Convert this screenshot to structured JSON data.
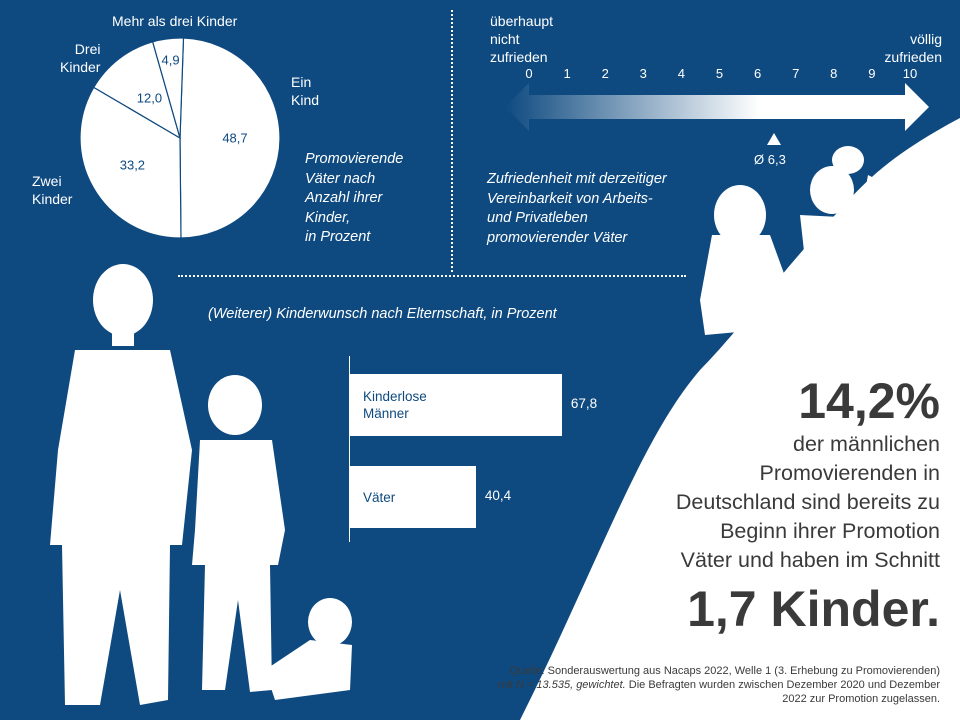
{
  "pie": {
    "title": "Mehr als drei Kinder",
    "caption": [
      "Promovierende",
      "Väter nach",
      "Anzahl ihrer",
      "Kinder,",
      "in Prozent"
    ],
    "labels": {
      "ein": [
        "Ein",
        "Kind"
      ],
      "zwei": [
        "Zwei",
        "Kinder"
      ],
      "drei": [
        "Drei",
        "Kinder"
      ]
    }
  },
  "satisfaction": {
    "left_label": [
      "überhaupt",
      "nicht",
      "zufrieden"
    ],
    "right_label": [
      "völlig",
      "zufrieden"
    ],
    "ticks": [
      "0",
      "1",
      "2",
      "3",
      "4",
      "5",
      "6",
      "7",
      "8",
      "9",
      "10"
    ],
    "average_label": "Ø 6,3",
    "average_value": 6.3,
    "caption": [
      "Zufriedenheit mit derzeitiger",
      "Vereinbarkeit von Arbeits-",
      "und Privatleben",
      "promovierender Väter"
    ]
  },
  "bars": {
    "caption": "(Weiterer) Kinderwunsch nach Elternschaft, in Prozent"
  },
  "headline": {
    "stat": "14,2%",
    "text": [
      "der männlichen",
      "Promovierenden in",
      "Deutschland sind bereits zu",
      "Beginn ihrer Promotion",
      "Väter und haben im Schnitt"
    ],
    "kids": "1,7 Kinder."
  },
  "source": {
    "line1": "Quelle: Sonderauswertung aus Nacaps 2022, Welle 1 (3. Erhebung zu Promovierenden)",
    "line2a": "mit ",
    "line2n": "N = 13.535, gewichtet.",
    "line2b": " Die Befragten wurden zwischen Dezember 2020 und Dezember",
    "line3": "2022 zur Promotion zugelassen."
  },
  "colors": {
    "background": "#0e4a80",
    "white": "#ffffff",
    "text_dark": "#3a3a3a"
  },
  "chart_data": [
    {
      "type": "pie",
      "title": "",
      "categories": [
        "Ein Kind",
        "Zwei Kinder",
        "Drei Kinder",
        "Mehr als drei Kinder"
      ],
      "values": [
        48.7,
        33.2,
        12.0,
        4.9
      ],
      "value_labels": [
        "48,7",
        "33,2",
        "12,0",
        "4,9"
      ]
    },
    {
      "type": "bar",
      "orientation": "horizontal",
      "title": "",
      "categories": [
        "Kinderlose Männer",
        "Väter"
      ],
      "category_lines": [
        [
          "Kinderlose",
          "Männer"
        ],
        [
          "Väter"
        ]
      ],
      "values": [
        67.8,
        40.4
      ],
      "value_labels": [
        "67,8",
        "40,4"
      ],
      "xlim": [
        0,
        100
      ]
    }
  ]
}
